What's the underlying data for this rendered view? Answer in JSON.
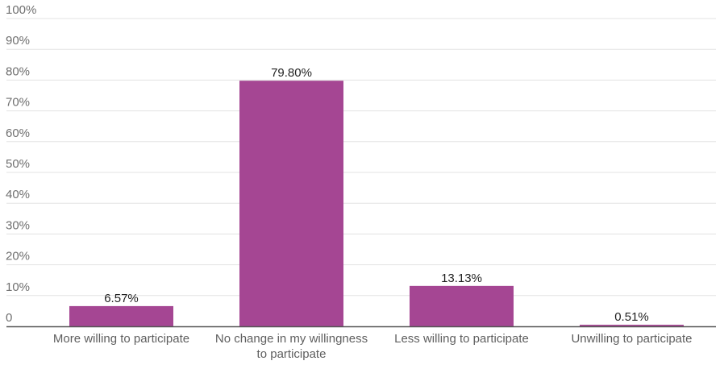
{
  "chart_data": {
    "type": "bar",
    "categories": [
      [
        "More willing to participate"
      ],
      [
        "No change in my willingness",
        "to participate"
      ],
      [
        "Less willing to participate"
      ],
      [
        "Unwilling to participate"
      ]
    ],
    "values": [
      6.57,
      79.8,
      13.13,
      0.51
    ],
    "value_labels": [
      "6.57%",
      "79.80%",
      "13.13%",
      "0.51%"
    ],
    "y_ticks": [
      0,
      10,
      20,
      30,
      40,
      50,
      60,
      70,
      80,
      90,
      100
    ],
    "y_tick_labels": [
      "0",
      "10%",
      "20%",
      "30%",
      "40%",
      "50%",
      "60%",
      "70%",
      "80%",
      "90%",
      "100%"
    ],
    "ylim": [
      0,
      100
    ],
    "grid": true,
    "legend": "none",
    "title": "",
    "xlabel": "",
    "ylabel": ""
  },
  "colors": {
    "bar": "#a54693",
    "grid": "#e3e3e3",
    "axis": "#555555"
  }
}
